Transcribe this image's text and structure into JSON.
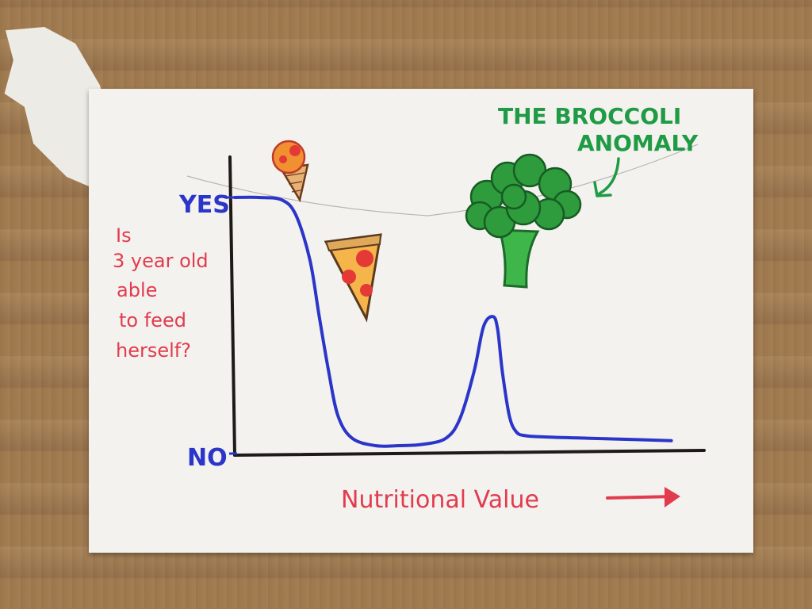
{
  "chart_data": {
    "type": "line",
    "title": "THE BROCCOLI ANOMALY",
    "xlabel": "Nutritional Value",
    "ylabel": "Is 3 year old able to feed herself?",
    "y_tick_labels": [
      "YES",
      "NO"
    ],
    "ylim": [
      0,
      1
    ],
    "xlim": [
      0,
      1
    ],
    "series": [
      {
        "color": "#2b35c9",
        "x": [
          0.0,
          0.05,
          0.1,
          0.13,
          0.16,
          0.18,
          0.2,
          0.22,
          0.25,
          0.3,
          0.35,
          0.4,
          0.45,
          0.48,
          0.51,
          0.53,
          0.55,
          0.56,
          0.57,
          0.585,
          0.6,
          0.62,
          0.66,
          0.75,
          0.85,
          0.93
        ],
        "y": [
          1.0,
          1.0,
          0.99,
          0.93,
          0.75,
          0.52,
          0.3,
          0.12,
          0.03,
          0.0,
          0.0,
          0.005,
          0.03,
          0.11,
          0.3,
          0.48,
          0.52,
          0.47,
          0.3,
          0.12,
          0.055,
          0.04,
          0.035,
          0.03,
          0.025,
          0.02
        ]
      }
    ],
    "grid": false,
    "legend": "none"
  },
  "annotations": {
    "title_line_1": "THE BROCCOLI",
    "title_line_2": "ANOMALY",
    "ylabel_lines": [
      "Is",
      "3 year old",
      "able",
      "to feed",
      "herself?"
    ]
  },
  "colors": {
    "curve": "#2b35c9",
    "axis": "#1e1a1a",
    "title": "#1f9a45",
    "labels": "#e23b4e",
    "ticks": "#2b35c9"
  },
  "icons": [
    "ice-cream-cone-icon",
    "pizza-slice-icon",
    "broccoli-icon",
    "arrow-icon"
  ]
}
